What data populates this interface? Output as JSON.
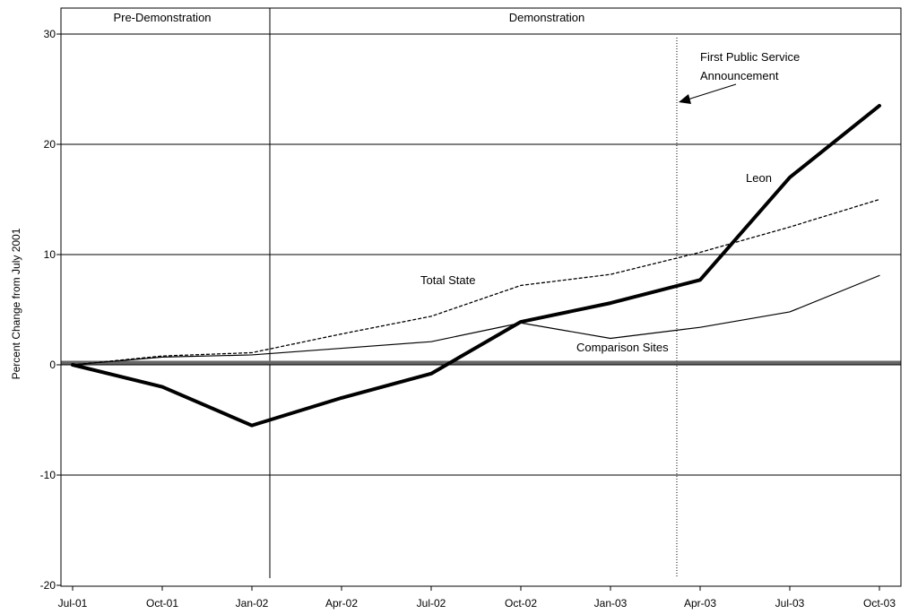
{
  "chart_data": {
    "type": "line",
    "ylabel": "Percent Change from July 2001",
    "ylim": [
      -20,
      30
    ],
    "yticks": [
      "30",
      "20",
      "10",
      "0",
      "-10",
      "-20"
    ],
    "ytick_values": [
      30,
      20,
      10,
      0,
      -10,
      -20
    ],
    "categories": [
      "Jul-01",
      "Oct-01",
      "Jan-02",
      "Apr-02",
      "Jul-02",
      "Oct-02",
      "Jan-03",
      "Apr-03",
      "Jul-03",
      "Oct-03"
    ],
    "periods": [
      {
        "label": "Pre-Demonstration"
      },
      {
        "label": "Demonstration"
      }
    ],
    "series": [
      {
        "name": "Leon",
        "style": "thick-solid",
        "color": "#000000",
        "values": [
          0,
          -2,
          -5.5,
          -3,
          -0.8,
          3.9,
          5.6,
          7.7,
          17,
          23.5
        ]
      },
      {
        "name": "Total State",
        "style": "dotted",
        "color": "#000000",
        "values": [
          0,
          0.8,
          1.1,
          2.8,
          4.4,
          7.2,
          8.2,
          10.2,
          12.5,
          15
        ]
      },
      {
        "name": "Comparison Sites",
        "style": "thin-solid",
        "color": "#000000",
        "values": [
          0,
          0.7,
          0.9,
          1.5,
          2.1,
          3.8,
          2.4,
          3.4,
          4.8,
          8.1
        ]
      }
    ],
    "baseline": {
      "value": 0.2,
      "color": "#666666"
    },
    "annotation": {
      "line1": "First Public Service",
      "line2": "Announcement",
      "x_value": "Mar-03"
    },
    "grid": true
  }
}
